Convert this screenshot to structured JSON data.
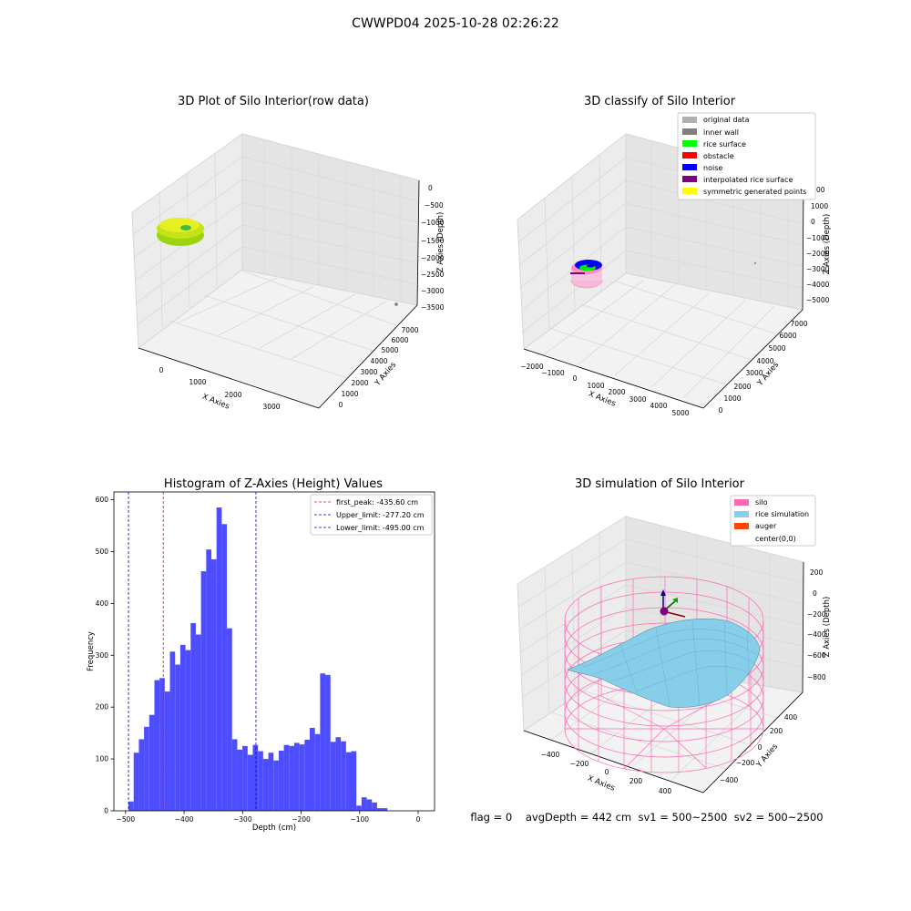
{
  "figure": {
    "suptitle": "CWWPD04 2025-10-28 02:26:22",
    "status": {
      "flag": "flag = 0",
      "avg_depth": "avgDepth = 442 cm",
      "sv1": "sv1 = 500~2500",
      "sv2": "sv2 = 500~2500"
    }
  },
  "colors": {
    "hist_bar": "#4d4dff",
    "first_peak_line": "#e31a1c",
    "limit_line": "#0000cc",
    "raw_points": "#c6e21a",
    "silo_wire": "#ff69b4",
    "rice_surface": "#87ceeb"
  },
  "chart_data": [
    {
      "type": "scatter",
      "subtype": "3d",
      "title": "3D Plot of Silo Interior(row data)",
      "xlabel": "X Axies",
      "ylabel": "Y Axies",
      "zlabel": "Z Axies (Depth)",
      "x_ticks": [
        "0",
        "1000",
        "2000",
        "3000"
      ],
      "y_ticks": [
        "0",
        "1000",
        "2000",
        "3000",
        "4000",
        "5000",
        "6000",
        "7000"
      ],
      "z_ticks": [
        "0",
        "−500",
        "−1000",
        "−1500",
        "−2000",
        "−2500",
        "−3000",
        "−3500"
      ]
    },
    {
      "type": "scatter",
      "subtype": "3d",
      "title": "3D classify of Silo Interior",
      "xlabel": "X Axies",
      "ylabel": "Y Axies",
      "zlabel": "Z Axies (Depth)",
      "x_ticks": [
        "−2000",
        "−1000",
        "0",
        "1000",
        "2000",
        "3000",
        "4000",
        "5000"
      ],
      "y_ticks": [
        "0",
        "1000",
        "2000",
        "3000",
        "4000",
        "5000",
        "6000",
        "7000"
      ],
      "z_ticks": [
        "1000",
        "0",
        "−1000",
        "−2000",
        "−3000",
        "−4000",
        "−5000"
      ],
      "z_top_partial": "00",
      "legend": [
        {
          "label": "original data",
          "color": "#b0b0b0"
        },
        {
          "label": "inner wall",
          "color": "#808080"
        },
        {
          "label": "rice surface",
          "color": "#00ff00"
        },
        {
          "label": "obstacle",
          "color": "#ff0000"
        },
        {
          "label": "noise",
          "color": "#0000ff"
        },
        {
          "label": "interpolated rice surface",
          "color": "#800080"
        },
        {
          "label": "symmetric generated points",
          "color": "#ffff00"
        }
      ]
    },
    {
      "type": "bar",
      "subtype": "histogram",
      "title": "Histogram of Z-Axies (Height) Values",
      "xlabel": "Depth (cm)",
      "ylabel": "Frequency",
      "xlim": [
        -520,
        28
      ],
      "ylim": [
        0,
        615
      ],
      "x_ticks": [
        -500,
        -400,
        -300,
        -200,
        -100,
        0
      ],
      "x_tick_labels": [
        "−500",
        "−400",
        "−300",
        "−200",
        "−100",
        "0"
      ],
      "y_ticks": [
        0,
        100,
        200,
        300,
        400,
        500,
        600
      ],
      "y_tick_labels": [
        "0",
        "100",
        "200",
        "300",
        "400",
        "500",
        "600"
      ],
      "bin_start": -495,
      "bin_width": 8.85,
      "values": [
        18,
        112,
        138,
        162,
        185,
        252,
        256,
        230,
        307,
        282,
        320,
        310,
        362,
        340,
        462,
        504,
        485,
        585,
        553,
        352,
        138,
        118,
        125,
        108,
        127,
        115,
        100,
        112,
        97,
        116,
        127,
        125,
        131,
        128,
        137,
        160,
        148,
        265,
        262,
        133,
        142,
        134,
        113,
        115,
        10,
        26,
        22,
        16,
        5,
        5
      ],
      "vlines": [
        {
          "label": "first_peak: -435.60 cm",
          "x": -435.6,
          "color": "#e31a1c"
        },
        {
          "label": "Upper_limit: -277.20 cm",
          "x": -277.2,
          "color": "#0000cc"
        },
        {
          "label": "Lower_limit: -495.00 cm",
          "x": -495.0,
          "color": "#0000cc"
        }
      ]
    },
    {
      "type": "surface",
      "subtype": "3d",
      "title": "3D simulation of Silo Interior",
      "xlabel": "X Axies",
      "ylabel": "Y Axies",
      "zlabel": "Z Axies (Depth)",
      "x_ticks": [
        "−400",
        "−200",
        "0",
        "200",
        "400"
      ],
      "y_ticks": [
        "−400",
        "−200",
        "0",
        "200",
        "400"
      ],
      "z_ticks": [
        "200",
        "0",
        "−200",
        "−400",
        "−600",
        "−800"
      ],
      "legend": [
        {
          "label": "silo",
          "color": "#ff69b4"
        },
        {
          "label": "rice simulation",
          "color": "#87ceeb"
        },
        {
          "label": "auger",
          "color": "#ff4500"
        },
        {
          "label": "center(0,0)",
          "color": ""
        }
      ]
    }
  ]
}
